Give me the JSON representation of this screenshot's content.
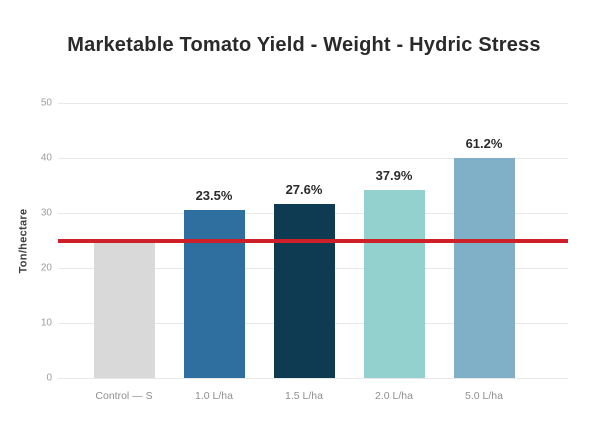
{
  "chart_data": {
    "type": "bar",
    "title": "Marketable Tomato Yield - Weight - Hydric Stress",
    "xlabel": "",
    "ylabel": "Ton/hectare",
    "categories": [
      "Control — S",
      "1.0 L/ha",
      "1.5 L/ha",
      "2.0 L/ha",
      "5.0 L/ha"
    ],
    "values": [
      24.8,
      30.6,
      31.6,
      34.2,
      40.0
    ],
    "bar_labels": [
      "",
      "23.5%",
      "27.6%",
      "37.9%",
      "61.2%"
    ],
    "bar_colors": [
      "#d9d9d9",
      "#2f6f9f",
      "#0e3a52",
      "#92d1cd",
      "#7fb0c7"
    ],
    "ylim": [
      0,
      50
    ],
    "yticks": [
      0,
      10,
      20,
      30,
      40,
      50
    ],
    "grid": true,
    "legend": false,
    "reference_line": {
      "value": 25,
      "color": "#ce2028",
      "meaning": "control yield level"
    }
  },
  "colors": {
    "background": "#ffffff",
    "title_text": "#2a2a2a",
    "gridline": "#e8e8e8",
    "tick_text": "#9c9c9c",
    "reference_line": "#ce2028"
  }
}
